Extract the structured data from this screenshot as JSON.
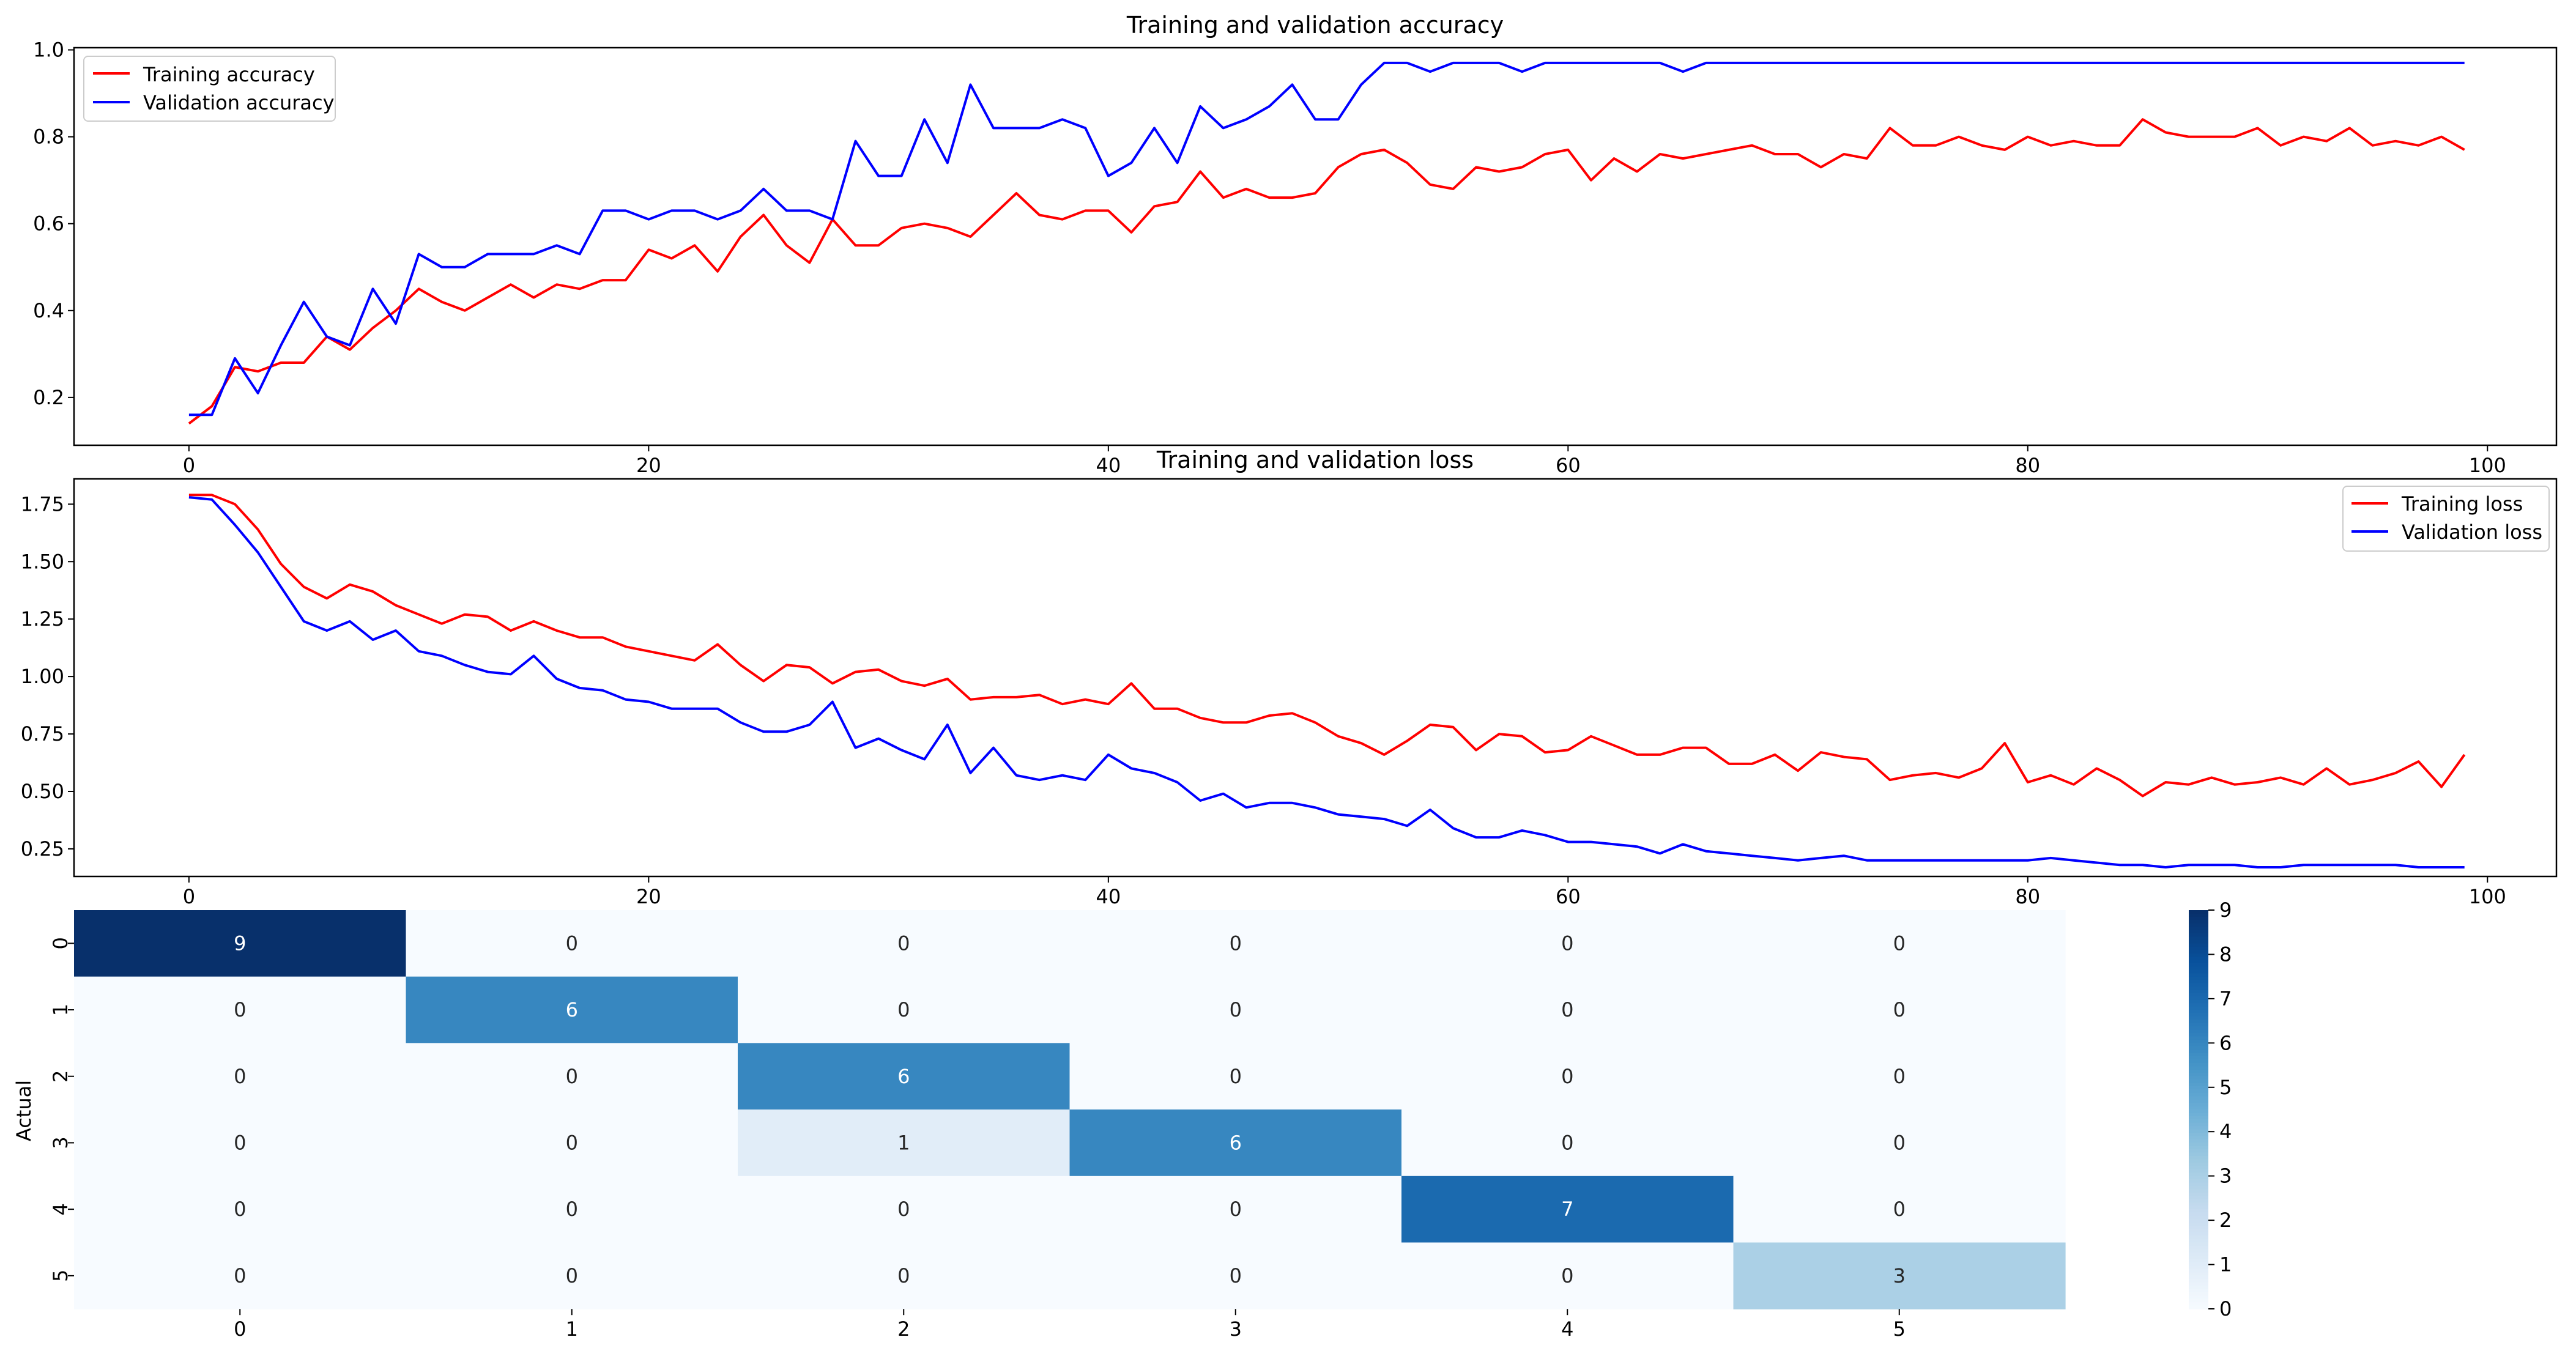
{
  "colors": {
    "training": "#ff0000",
    "validation": "#0000ff",
    "axis": "#000000",
    "legend_border": "#cccccc",
    "cell_text_dark": "#262626",
    "cell_text_light": "#ffffff"
  },
  "chart_data": [
    {
      "id": "accuracy",
      "type": "line",
      "title": "Training and validation accuracy",
      "xlabel": "",
      "ylabel": "",
      "xlim": [
        -5,
        103
      ],
      "ylim": [
        0.09,
        1.005
      ],
      "xticks": [
        0,
        20,
        40,
        60,
        80,
        100
      ],
      "yticks": [
        0.2,
        0.4,
        0.6,
        0.8,
        1.0
      ],
      "ytick_labels": [
        "0.2",
        "0.4",
        "0.6",
        "0.8",
        "1.0"
      ],
      "legend_position": "upper-left",
      "series": [
        {
          "name": "Training accuracy",
          "color_key": "training",
          "values": [
            0.14,
            0.18,
            0.27,
            0.26,
            0.28,
            0.28,
            0.34,
            0.31,
            0.36,
            0.4,
            0.45,
            0.42,
            0.4,
            0.43,
            0.46,
            0.43,
            0.46,
            0.45,
            0.47,
            0.47,
            0.54,
            0.52,
            0.55,
            0.49,
            0.57,
            0.62,
            0.55,
            0.51,
            0.61,
            0.55,
            0.55,
            0.59,
            0.6,
            0.59,
            0.57,
            0.62,
            0.67,
            0.62,
            0.61,
            0.63,
            0.63,
            0.58,
            0.64,
            0.65,
            0.72,
            0.66,
            0.68,
            0.66,
            0.66,
            0.67,
            0.73,
            0.76,
            0.77,
            0.74,
            0.69,
            0.68,
            0.73,
            0.72,
            0.73,
            0.76,
            0.77,
            0.7,
            0.75,
            0.72,
            0.76,
            0.75,
            0.76,
            0.77,
            0.78,
            0.76,
            0.76,
            0.73,
            0.76,
            0.75,
            0.82,
            0.78,
            0.78,
            0.8,
            0.78,
            0.77,
            0.8,
            0.78,
            0.79,
            0.78,
            0.78,
            0.84,
            0.81,
            0.8,
            0.8,
            0.8,
            0.82,
            0.78,
            0.8,
            0.79,
            0.82,
            0.78,
            0.79,
            0.78,
            0.8,
            0.77
          ]
        },
        {
          "name": "Validation accuracy",
          "color_key": "validation",
          "values": [
            0.16,
            0.16,
            0.29,
            0.21,
            0.32,
            0.42,
            0.34,
            0.32,
            0.45,
            0.37,
            0.53,
            0.5,
            0.5,
            0.53,
            0.53,
            0.53,
            0.55,
            0.53,
            0.63,
            0.63,
            0.61,
            0.63,
            0.63,
            0.61,
            0.63,
            0.68,
            0.63,
            0.63,
            0.61,
            0.79,
            0.71,
            0.71,
            0.84,
            0.74,
            0.92,
            0.82,
            0.82,
            0.82,
            0.84,
            0.82,
            0.71,
            0.74,
            0.82,
            0.74,
            0.87,
            0.82,
            0.84,
            0.87,
            0.92,
            0.84,
            0.84,
            0.92,
            0.97,
            0.97,
            0.95,
            0.97,
            0.97,
            0.97,
            0.95,
            0.97,
            0.97,
            0.97,
            0.97,
            0.97,
            0.97,
            0.95,
            0.97,
            0.97,
            0.97,
            0.97,
            0.97,
            0.97,
            0.97,
            0.97,
            0.97,
            0.97,
            0.97,
            0.97,
            0.97,
            0.97,
            0.97,
            0.97,
            0.97,
            0.97,
            0.97,
            0.97,
            0.97,
            0.97,
            0.97,
            0.97,
            0.97,
            0.97,
            0.97,
            0.97,
            0.97,
            0.97,
            0.97,
            0.97,
            0.97,
            0.97
          ]
        }
      ]
    },
    {
      "id": "loss",
      "type": "line",
      "title": "Training and validation loss",
      "xlabel": "",
      "ylabel": "",
      "xlim": [
        -5,
        103
      ],
      "ylim": [
        0.13,
        1.86
      ],
      "xticks": [
        0,
        20,
        40,
        60,
        80,
        100
      ],
      "yticks": [
        0.25,
        0.5,
        0.75,
        1.0,
        1.25,
        1.5,
        1.75
      ],
      "ytick_labels": [
        "0.25",
        "0.50",
        "0.75",
        "1.00",
        "1.25",
        "1.50",
        "1.75"
      ],
      "legend_position": "upper-right",
      "series": [
        {
          "name": "Training loss",
          "color_key": "training",
          "values": [
            1.79,
            1.79,
            1.75,
            1.64,
            1.49,
            1.39,
            1.34,
            1.4,
            1.37,
            1.31,
            1.27,
            1.23,
            1.27,
            1.26,
            1.2,
            1.24,
            1.2,
            1.17,
            1.17,
            1.13,
            1.11,
            1.09,
            1.07,
            1.14,
            1.05,
            0.98,
            1.05,
            1.04,
            0.97,
            1.02,
            1.03,
            0.98,
            0.96,
            0.99,
            0.9,
            0.91,
            0.91,
            0.92,
            0.88,
            0.9,
            0.88,
            0.97,
            0.86,
            0.86,
            0.82,
            0.8,
            0.8,
            0.83,
            0.84,
            0.8,
            0.74,
            0.71,
            0.66,
            0.72,
            0.79,
            0.78,
            0.68,
            0.75,
            0.74,
            0.67,
            0.68,
            0.74,
            0.7,
            0.66,
            0.66,
            0.69,
            0.69,
            0.62,
            0.62,
            0.66,
            0.59,
            0.67,
            0.65,
            0.64,
            0.55,
            0.57,
            0.58,
            0.56,
            0.6,
            0.71,
            0.54,
            0.57,
            0.53,
            0.6,
            0.55,
            0.48,
            0.54,
            0.53,
            0.56,
            0.53,
            0.54,
            0.56,
            0.53,
            0.6,
            0.53,
            0.55,
            0.58,
            0.63,
            0.52,
            0.66
          ]
        },
        {
          "name": "Validation loss",
          "color_key": "validation",
          "values": [
            1.78,
            1.77,
            1.66,
            1.54,
            1.39,
            1.24,
            1.2,
            1.24,
            1.16,
            1.2,
            1.11,
            1.09,
            1.05,
            1.02,
            1.01,
            1.09,
            0.99,
            0.95,
            0.94,
            0.9,
            0.89,
            0.86,
            0.86,
            0.86,
            0.8,
            0.76,
            0.76,
            0.79,
            0.89,
            0.69,
            0.73,
            0.68,
            0.64,
            0.79,
            0.58,
            0.69,
            0.57,
            0.55,
            0.57,
            0.55,
            0.66,
            0.6,
            0.58,
            0.54,
            0.46,
            0.49,
            0.43,
            0.45,
            0.45,
            0.43,
            0.4,
            0.39,
            0.38,
            0.35,
            0.42,
            0.34,
            0.3,
            0.3,
            0.33,
            0.31,
            0.28,
            0.28,
            0.27,
            0.26,
            0.23,
            0.27,
            0.24,
            0.23,
            0.22,
            0.21,
            0.2,
            0.21,
            0.22,
            0.2,
            0.2,
            0.2,
            0.2,
            0.2,
            0.2,
            0.2,
            0.2,
            0.21,
            0.2,
            0.19,
            0.18,
            0.18,
            0.17,
            0.18,
            0.18,
            0.18,
            0.17,
            0.17,
            0.18,
            0.18,
            0.18,
            0.18,
            0.18,
            0.17,
            0.17,
            0.17
          ]
        }
      ]
    },
    {
      "id": "confusion",
      "type": "heatmap",
      "title": "",
      "xlabel": "",
      "ylabel": "Actual",
      "x_categories": [
        "0",
        "1",
        "2",
        "3",
        "4",
        "5"
      ],
      "y_categories": [
        "0",
        "1",
        "2",
        "3",
        "4",
        "5"
      ],
      "matrix": [
        [
          9,
          0,
          0,
          0,
          0,
          0
        ],
        [
          0,
          6,
          0,
          0,
          0,
          0
        ],
        [
          0,
          0,
          6,
          0,
          0,
          0
        ],
        [
          0,
          0,
          1,
          6,
          0,
          0
        ],
        [
          0,
          0,
          0,
          0,
          7,
          0
        ],
        [
          0,
          0,
          0,
          0,
          0,
          3
        ]
      ],
      "colormap": "Blues",
      "vmin": 0,
      "vmax": 9,
      "colorbar_ticks": [
        "0",
        "1",
        "2",
        "3",
        "4",
        "5",
        "6",
        "7",
        "8",
        "9"
      ]
    }
  ]
}
